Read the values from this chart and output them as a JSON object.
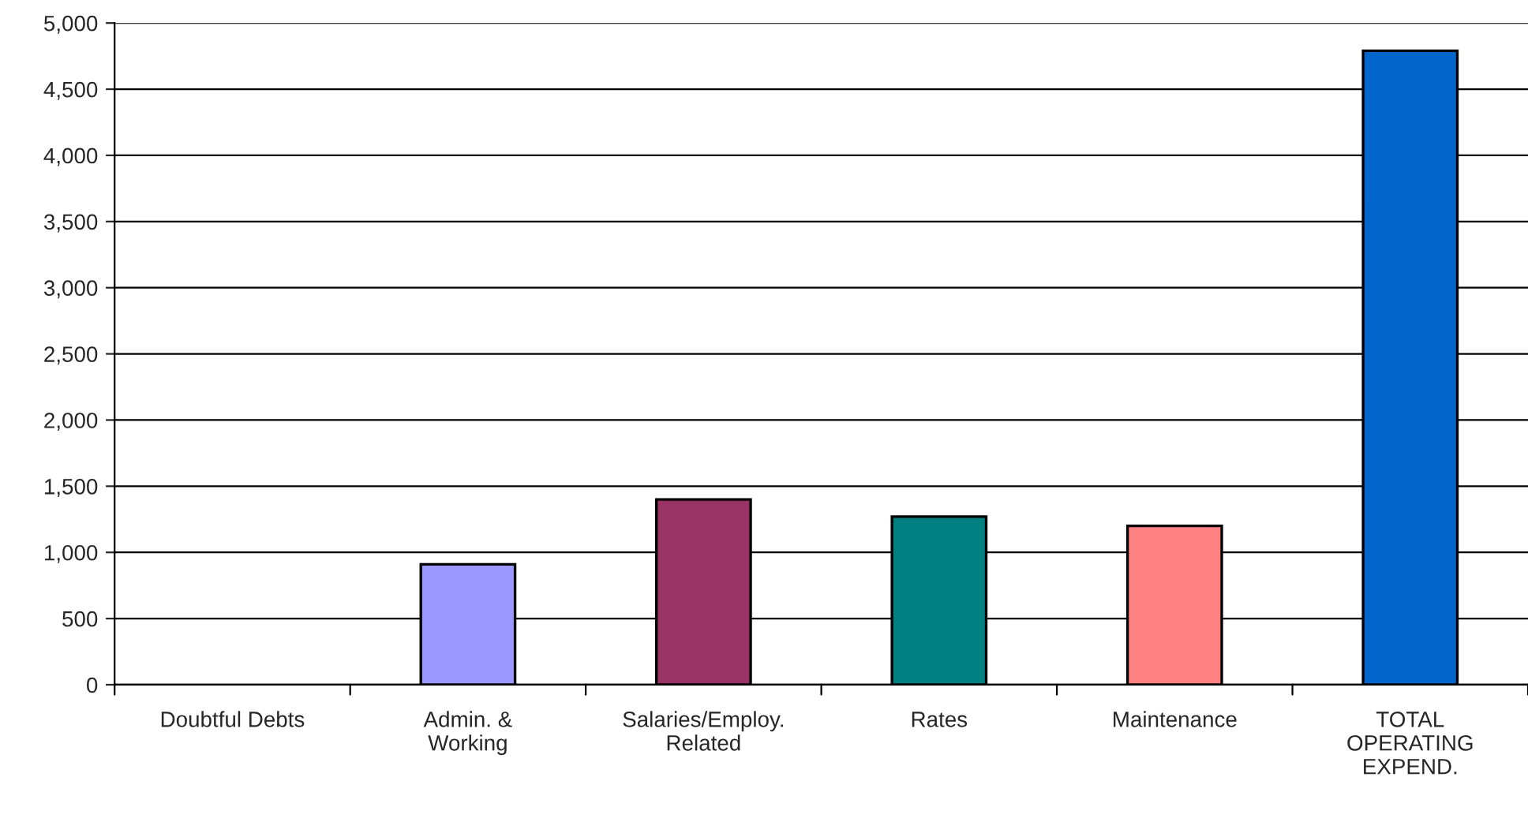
{
  "chart_data": {
    "type": "bar",
    "categories": [
      "Doubtful Debts",
      "Admin. &\nWorking",
      "Salaries/Employ.\nRelated",
      "Rates",
      "Maintenance",
      "TOTAL\nOPERATING\nEXPEND."
    ],
    "values": [
      0,
      910,
      1400,
      1270,
      1200,
      4790
    ],
    "colors": [
      null,
      "#9999ff",
      "#993366",
      "#008080",
      "#ff8080",
      "#0066cc"
    ],
    "ylim": [
      0,
      5000
    ],
    "yticks": [
      0,
      500,
      {
        "value": 1000,
        "label": "1,000"
      },
      {
        "value": 1500,
        "label": "1,500"
      },
      {
        "value": 2000,
        "label": "2,000"
      },
      {
        "value": 2500,
        "label": "2,500"
      },
      {
        "value": 3000,
        "label": "3,000"
      },
      {
        "value": 3500,
        "label": "3,500"
      },
      {
        "value": 4000,
        "label": "4,000"
      },
      {
        "value": 4500,
        "label": "4,500"
      },
      {
        "value": 5000,
        "label": "5,000"
      }
    ],
    "grid": "y",
    "legend": false
  }
}
